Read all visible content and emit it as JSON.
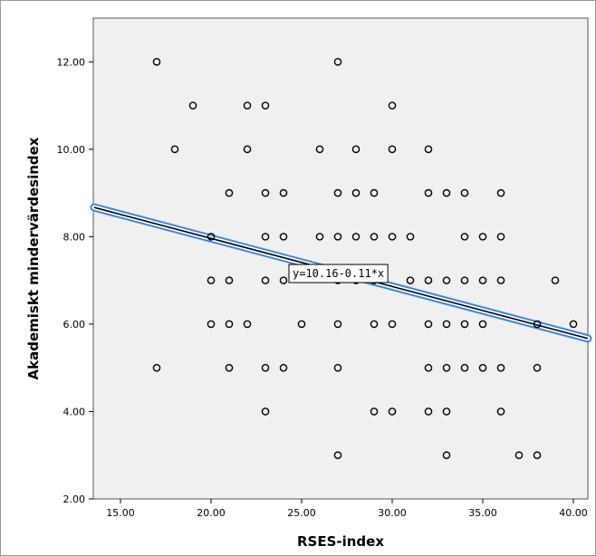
{
  "chart_data": {
    "type": "scatter",
    "xlabel": "RSES-index",
    "ylabel": "Akademiskt mindervärdesindex",
    "xlim": [
      13.5,
      40.8
    ],
    "ylim": [
      2.0,
      13.0
    ],
    "x_ticks": [
      "15.00",
      "20.00",
      "25.00",
      "30.00",
      "35.00",
      "40.00"
    ],
    "x_tick_values": [
      15,
      20,
      25,
      30,
      35,
      40
    ],
    "y_ticks": [
      "2.00",
      "4.00",
      "6.00",
      "8.00",
      "10.00",
      "12.00"
    ],
    "y_tick_values": [
      2,
      4,
      6,
      8,
      10,
      12
    ],
    "grid": false,
    "background_color": "#f0f0f0",
    "fit_line": {
      "label": "y=10.16-0.11*x",
      "intercept": 10.16,
      "slope": -0.11,
      "color_outer": "#3a86e8",
      "color_inner": "#000000"
    },
    "points": [
      [
        17,
        12
      ],
      [
        27,
        12
      ],
      [
        19,
        11
      ],
      [
        22,
        11
      ],
      [
        23,
        11
      ],
      [
        30,
        11
      ],
      [
        18,
        10
      ],
      [
        22,
        10
      ],
      [
        26,
        10
      ],
      [
        28,
        10
      ],
      [
        30,
        10
      ],
      [
        32,
        10
      ],
      [
        21,
        9
      ],
      [
        23,
        9
      ],
      [
        24,
        9
      ],
      [
        27,
        9
      ],
      [
        28,
        9
      ],
      [
        29,
        9
      ],
      [
        32,
        9
      ],
      [
        33,
        9
      ],
      [
        34,
        9
      ],
      [
        36,
        9
      ],
      [
        20,
        8
      ],
      [
        23,
        8
      ],
      [
        24,
        8
      ],
      [
        26,
        8
      ],
      [
        27,
        8
      ],
      [
        28,
        8
      ],
      [
        29,
        8
      ],
      [
        30,
        8
      ],
      [
        31,
        8
      ],
      [
        34,
        8
      ],
      [
        35,
        8
      ],
      [
        36,
        8
      ],
      [
        20,
        7
      ],
      [
        21,
        7
      ],
      [
        23,
        7
      ],
      [
        24,
        7
      ],
      [
        27,
        7
      ],
      [
        28,
        7
      ],
      [
        29,
        7
      ],
      [
        31,
        7
      ],
      [
        32,
        7
      ],
      [
        33,
        7
      ],
      [
        34,
        7
      ],
      [
        35,
        7
      ],
      [
        36,
        7
      ],
      [
        39,
        7
      ],
      [
        20,
        6
      ],
      [
        21,
        6
      ],
      [
        22,
        6
      ],
      [
        25,
        6
      ],
      [
        27,
        6
      ],
      [
        29,
        6
      ],
      [
        30,
        6
      ],
      [
        32,
        6
      ],
      [
        33,
        6
      ],
      [
        34,
        6
      ],
      [
        35,
        6
      ],
      [
        38,
        6
      ],
      [
        40,
        6
      ],
      [
        17,
        5
      ],
      [
        21,
        5
      ],
      [
        23,
        5
      ],
      [
        24,
        5
      ],
      [
        27,
        5
      ],
      [
        32,
        5
      ],
      [
        33,
        5
      ],
      [
        34,
        5
      ],
      [
        35,
        5
      ],
      [
        36,
        5
      ],
      [
        38,
        5
      ],
      [
        23,
        4
      ],
      [
        29,
        4
      ],
      [
        30,
        4
      ],
      [
        32,
        4
      ],
      [
        33,
        4
      ],
      [
        36,
        4
      ],
      [
        27,
        3
      ],
      [
        33,
        3
      ],
      [
        37,
        3
      ],
      [
        38,
        3
      ]
    ]
  }
}
